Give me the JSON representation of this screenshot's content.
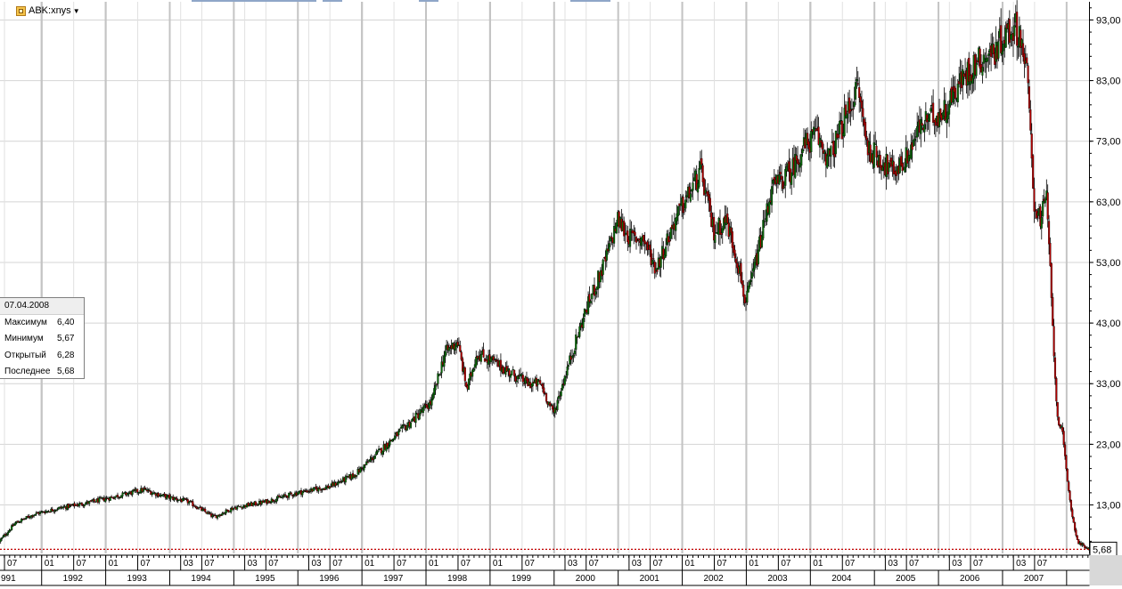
{
  "header": {
    "symbol": "ABK:xnys",
    "symbol_icon": "chart-window-icon",
    "dropdown_icon": "triangle-down-icon"
  },
  "info_box": {
    "date": "07.04.2008",
    "rows": [
      {
        "label": "Максимум",
        "value": "6,40"
      },
      {
        "label": "Минимум",
        "value": "5,67"
      },
      {
        "label": "Открытый",
        "value": "6,28"
      },
      {
        "label": "Последнее",
        "value": "5,68"
      }
    ]
  },
  "chart_data": {
    "type": "candlestick",
    "title": "",
    "xlabel": "",
    "ylabel": "",
    "ylim": [
      5.0,
      96.0
    ],
    "xlim": [
      1991.35,
      2008.35
    ],
    "y_ticks": [
      "93,00",
      "83,00",
      "73,00",
      "63,00",
      "53,00",
      "43,00",
      "33,00",
      "23,00",
      "13,00"
    ],
    "y_tick_values": [
      93,
      83,
      73,
      63,
      53,
      43,
      33,
      23,
      13
    ],
    "last_price_label": "5,68",
    "last_price": 5.68,
    "years": [
      "991",
      "1992",
      "1993",
      "1994",
      "1995",
      "1996",
      "1997",
      "1998",
      "1999",
      "2000",
      "2001",
      "2002",
      "2003",
      "2004",
      "2005",
      "2006",
      "2007"
    ],
    "month_labels": [
      {
        "t": 1991.42,
        "label": "07"
      },
      {
        "t": 1992.0,
        "label": "01"
      },
      {
        "t": 1992.5,
        "label": "07"
      },
      {
        "t": 1993.0,
        "label": "01"
      },
      {
        "t": 1993.5,
        "label": "07"
      },
      {
        "t": 1994.17,
        "label": "03"
      },
      {
        "t": 1994.5,
        "label": "07"
      },
      {
        "t": 1995.17,
        "label": "03"
      },
      {
        "t": 1995.5,
        "label": "07"
      },
      {
        "t": 1996.17,
        "label": "03"
      },
      {
        "t": 1996.5,
        "label": "07"
      },
      {
        "t": 1997.0,
        "label": "01"
      },
      {
        "t": 1997.5,
        "label": "07"
      },
      {
        "t": 1998.0,
        "label": "01"
      },
      {
        "t": 1998.5,
        "label": "07"
      },
      {
        "t": 1999.0,
        "label": "01"
      },
      {
        "t": 1999.5,
        "label": "07"
      },
      {
        "t": 2000.17,
        "label": "03"
      },
      {
        "t": 2000.5,
        "label": "07"
      },
      {
        "t": 2001.17,
        "label": "03"
      },
      {
        "t": 2001.5,
        "label": "07"
      },
      {
        "t": 2002.0,
        "label": "01"
      },
      {
        "t": 2002.5,
        "label": "07"
      },
      {
        "t": 2003.0,
        "label": "01"
      },
      {
        "t": 2003.5,
        "label": "07"
      },
      {
        "t": 2004.0,
        "label": "01"
      },
      {
        "t": 2004.5,
        "label": "07"
      },
      {
        "t": 2005.17,
        "label": "03"
      },
      {
        "t": 2005.5,
        "label": "07"
      },
      {
        "t": 2006.17,
        "label": "03"
      },
      {
        "t": 2006.5,
        "label": "07"
      },
      {
        "t": 2007.17,
        "label": "03"
      },
      {
        "t": 2007.5,
        "label": "07"
      }
    ],
    "series": [
      {
        "points": [
          [
            1991.35,
            7.0
          ],
          [
            1991.6,
            10.0
          ],
          [
            1991.9,
            11.5
          ],
          [
            1992.3,
            12.5
          ],
          [
            1992.8,
            13.5
          ],
          [
            1993.2,
            14.5
          ],
          [
            1993.6,
            15.5
          ],
          [
            1993.9,
            14.5
          ],
          [
            1994.3,
            13.5
          ],
          [
            1994.7,
            11.0
          ],
          [
            1995.0,
            12.5
          ],
          [
            1995.5,
            13.5
          ],
          [
            1996.0,
            15.0
          ],
          [
            1996.5,
            16.0
          ],
          [
            1996.9,
            18.0
          ],
          [
            1997.3,
            22.0
          ],
          [
            1997.6,
            25.0
          ],
          [
            1997.9,
            28.0
          ],
          [
            1998.1,
            30.0
          ],
          [
            1998.3,
            38.0
          ],
          [
            1998.5,
            40.0
          ],
          [
            1998.65,
            32.0
          ],
          [
            1998.8,
            38.0
          ],
          [
            1999.0,
            37.0
          ],
          [
            1999.3,
            35.0
          ],
          [
            1999.6,
            33.0
          ],
          [
            1999.8,
            33.0
          ],
          [
            2000.0,
            28.0
          ],
          [
            2000.2,
            35.0
          ],
          [
            2000.5,
            45.0
          ],
          [
            2000.8,
            53.0
          ],
          [
            2001.0,
            60.0
          ],
          [
            2001.2,
            57.0
          ],
          [
            2001.4,
            57.0
          ],
          [
            2001.6,
            52.0
          ],
          [
            2001.9,
            60.0
          ],
          [
            2002.1,
            64.0
          ],
          [
            2002.3,
            68.0
          ],
          [
            2002.5,
            58.0
          ],
          [
            2002.7,
            60.0
          ],
          [
            2002.9,
            52.0
          ],
          [
            2003.0,
            46.0
          ],
          [
            2003.2,
            55.0
          ],
          [
            2003.4,
            65.0
          ],
          [
            2003.7,
            68.0
          ],
          [
            2003.9,
            72.0
          ],
          [
            2004.1,
            74.0
          ],
          [
            2004.3,
            70.0
          ],
          [
            2004.6,
            78.0
          ],
          [
            2004.75,
            82.0
          ],
          [
            2004.9,
            72.0
          ],
          [
            2005.1,
            70.0
          ],
          [
            2005.3,
            68.0
          ],
          [
            2005.5,
            70.0
          ],
          [
            2005.7,
            75.0
          ],
          [
            2005.9,
            77.0
          ],
          [
            2006.1,
            78.0
          ],
          [
            2006.3,
            82.0
          ],
          [
            2006.6,
            86.0
          ],
          [
            2006.9,
            88.0
          ],
          [
            2007.0,
            90.0
          ],
          [
            2007.2,
            92.0
          ],
          [
            2007.3,
            90.0
          ],
          [
            2007.4,
            83.0
          ],
          [
            2007.5,
            63.0
          ],
          [
            2007.6,
            60.0
          ],
          [
            2007.7,
            64.0
          ],
          [
            2007.78,
            45.0
          ],
          [
            2007.86,
            28.0
          ],
          [
            2007.94,
            25.0
          ],
          [
            2008.02,
            17.0
          ],
          [
            2008.1,
            11.0
          ],
          [
            2008.18,
            7.0
          ],
          [
            2008.26,
            6.3
          ],
          [
            2008.35,
            5.68
          ]
        ]
      }
    ],
    "colors": {
      "up": "#0a6a0a",
      "down": "#b00000",
      "wick": "#000000",
      "grid": "#d4d4d4",
      "last_price_line": "#c00000"
    }
  }
}
